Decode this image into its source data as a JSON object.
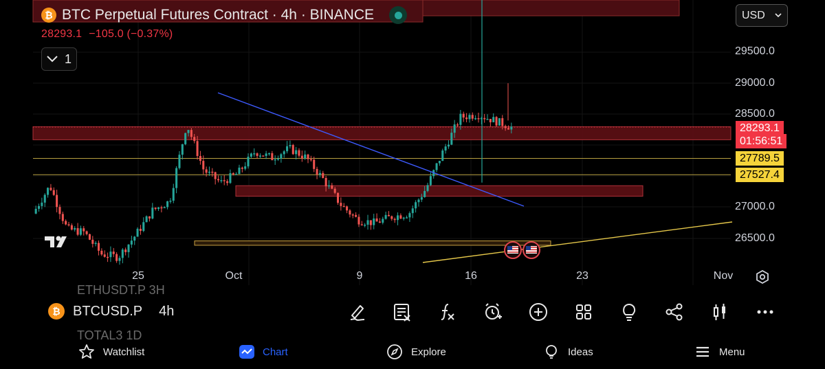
{
  "header": {
    "coin_symbol": "₿",
    "title": "BTC Perpetual Futures Contract · 4h · BINANCE",
    "price": "28293.1",
    "change": "−105.0 (−0.37%)",
    "collapse_count": "1"
  },
  "currency": {
    "value": "USD"
  },
  "price_axis": {
    "labels": [
      "29500.0",
      "29000.0",
      "28500.0",
      "27000.0",
      "26500.0"
    ],
    "current_price": "28293.1",
    "countdown": "01:56:51",
    "level_1": "27789.5",
    "level_2": "27527.4"
  },
  "time_axis": {
    "labels": [
      "25",
      "Oct",
      "9",
      "16",
      "23",
      "Nov"
    ]
  },
  "symbol_bar": {
    "ghost_above": "ETHUSDT.P 3H",
    "symbol": "BTCUSD.P",
    "timeframe": "4h",
    "ghost_below": "TOTAL3 1D"
  },
  "toolbar": {
    "tools": [
      "draw-icon",
      "note-icon",
      "indicators-icon",
      "alert-icon",
      "add-icon",
      "layouts-icon",
      "ideas-bulb-icon",
      "share-icon",
      "candles-icon",
      "more-icon"
    ]
  },
  "nav": {
    "items": [
      {
        "label": "Watchlist",
        "icon": "star-icon"
      },
      {
        "label": "Chart",
        "icon": "chart-icon"
      },
      {
        "label": "Explore",
        "icon": "compass-icon"
      },
      {
        "label": "Ideas",
        "icon": "bulb-icon"
      },
      {
        "label": "Menu",
        "icon": "menu-icon"
      }
    ]
  },
  "colors": {
    "up": "#26a69a",
    "down": "#ef5350",
    "accent": "#2962ff",
    "zone": "#5a0f14",
    "level": "#f5d33a"
  },
  "chart_data": {
    "type": "candlestick",
    "symbol": "BTCUSD.P",
    "interval": "4h",
    "x_labels": [
      "25",
      "Oct",
      "9",
      "16",
      "23",
      "Nov"
    ],
    "y_ticks": [
      26500,
      27000,
      28500,
      29000,
      29500
    ],
    "last_price": 28293.1,
    "levels": [
      27789.5,
      27527.4
    ],
    "resistance_zones": [
      [
        28090,
        28300
      ],
      [
        27180,
        27350
      ]
    ],
    "support_zones": [
      [
        26390,
        26460
      ]
    ],
    "trendlines": [
      {
        "from": [
          "Sep 29",
          28950
        ],
        "to": [
          "Oct 21",
          27010
        ]
      },
      {
        "from": [
          "Oct 12",
          26250
        ],
        "to": [
          "Nov 1",
          26770
        ]
      }
    ],
    "price_path": [
      [
        "Sep 19",
        26900
      ],
      [
        "Sep 20",
        27350
      ],
      [
        "Sep 21",
        26650
      ],
      [
        "Sep 22",
        26600
      ],
      [
        "Sep 24",
        26250
      ],
      [
        "Sep 26",
        26200
      ],
      [
        "Sep 28",
        26550
      ],
      [
        "Sep 30",
        26950
      ],
      [
        "Oct 1",
        27100
      ],
      [
        "Oct 2",
        28350
      ],
      [
        "Oct 3",
        27600
      ],
      [
        "Oct 4",
        27400
      ],
      [
        "Oct 5",
        27550
      ],
      [
        "Oct 6",
        27900
      ],
      [
        "Oct 7",
        27800
      ],
      [
        "Oct 8",
        27950
      ],
      [
        "Oct 9",
        27800
      ],
      [
        "Oct 10",
        27450
      ],
      [
        "Oct 11",
        27050
      ],
      [
        "Oct 12",
        26800
      ],
      [
        "Oct 13",
        26750
      ],
      [
        "Oct 14",
        26850
      ],
      [
        "Oct 15",
        26900
      ],
      [
        "Oct 16",
        27300
      ],
      [
        "Oct 16 PM",
        27900
      ],
      [
        "Oct 17",
        28450
      ],
      [
        "Oct 18",
        28500
      ],
      [
        "Oct 19",
        28400
      ],
      [
        "Oct 20",
        28293
      ]
    ]
  }
}
